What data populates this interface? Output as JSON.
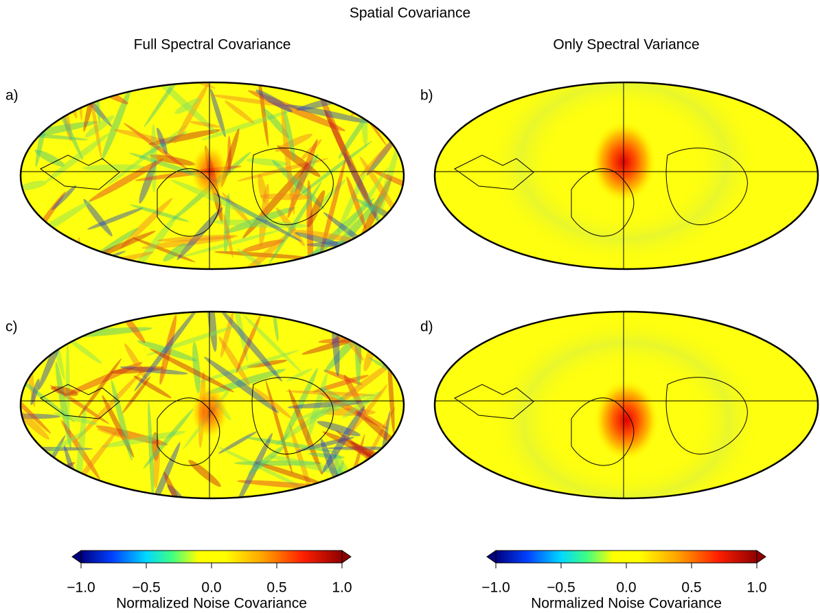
{
  "title": "Spatial Covariance",
  "columns": [
    {
      "title": "Full Spectral Covariance"
    },
    {
      "title": "Only Spectral Variance"
    }
  ],
  "panels": [
    {
      "label": "a)"
    },
    {
      "label": "b)"
    },
    {
      "label": "c)"
    },
    {
      "label": "d)"
    }
  ],
  "colorbars": [
    {
      "lim": [
        -1,
        1
      ],
      "ticks": [
        {
          "value": -1,
          "label": "−1.0"
        },
        {
          "value": -0.5,
          "label": "−0.5"
        },
        {
          "value": 0,
          "label": "0.0"
        },
        {
          "value": 0.5,
          "label": "0.5"
        },
        {
          "value": 1,
          "label": "1.0"
        }
      ],
      "label": "Normalized Noise Covariance"
    },
    {
      "lim": [
        -1,
        1
      ],
      "ticks": [
        {
          "value": -1,
          "label": "−1.0"
        },
        {
          "value": -0.5,
          "label": "−0.5"
        },
        {
          "value": 0,
          "label": "0.0"
        },
        {
          "value": 0.5,
          "label": "0.5"
        },
        {
          "value": 1,
          "label": "1.0"
        }
      ],
      "label": "Normalized Noise Covariance"
    }
  ]
}
